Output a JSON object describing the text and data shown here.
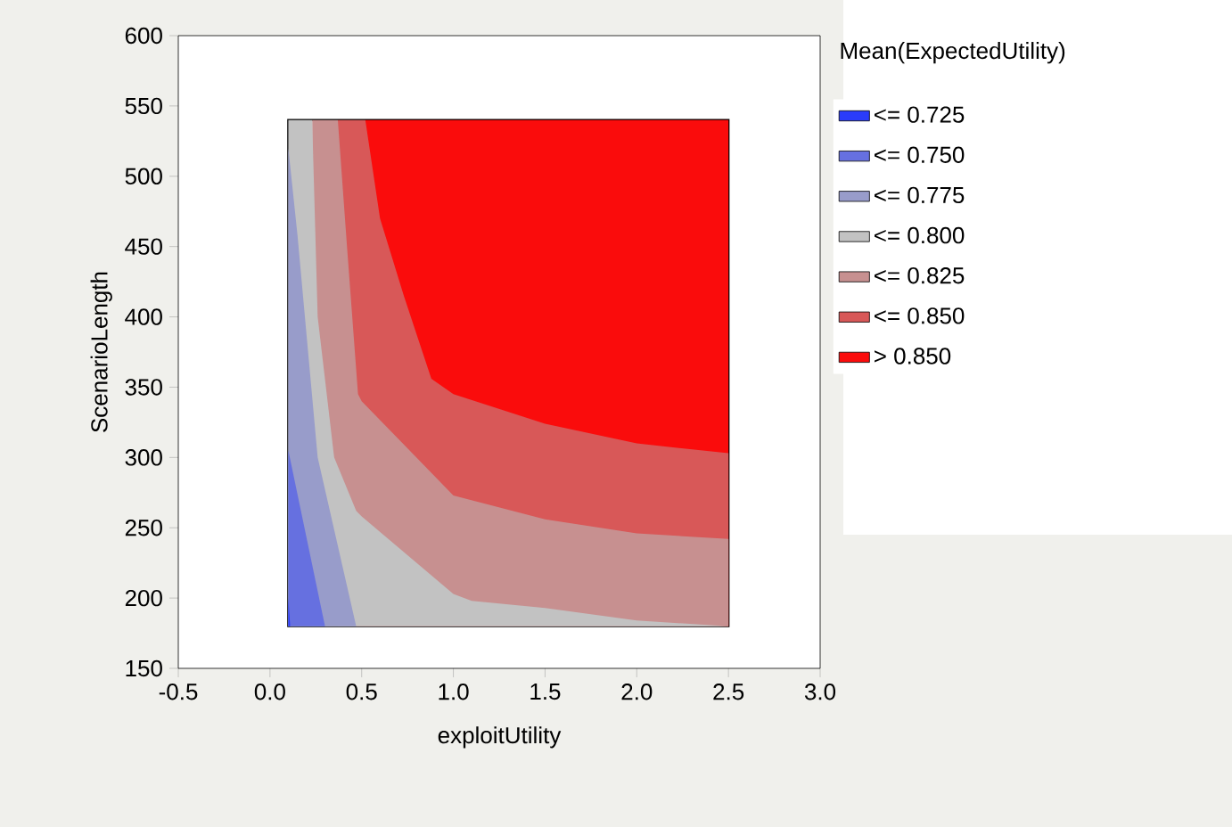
{
  "chart_data": {
    "type": "area",
    "xlabel": "exploitUtility",
    "ylabel": "ScenarioLength",
    "legend_title": "Mean(ExpectedUtility)",
    "legend": "right",
    "xlim": [
      -0.5,
      3.0
    ],
    "ylim": [
      150,
      600
    ],
    "xticks": [
      {
        "value": -0.5,
        "label": "-0.5"
      },
      {
        "value": 0,
        "label": "0.0"
      },
      {
        "value": 0.5,
        "label": "0.5"
      },
      {
        "value": 1,
        "label": "1.0"
      },
      {
        "value": 1.5,
        "label": "1.5"
      },
      {
        "value": 2,
        "label": "2.0"
      },
      {
        "value": 2.5,
        "label": "2.5"
      },
      {
        "value": 3,
        "label": "3.0"
      }
    ],
    "yticks": [
      150,
      200,
      250,
      300,
      350,
      400,
      450,
      500,
      550,
      600
    ],
    "series": [
      {
        "name": "<= 0.725",
        "color": "#2a3cfa",
        "x": [
          0.1,
          0.11
        ],
        "values": [
          200,
          180
        ]
      },
      {
        "name": "<= 0.750",
        "color": "#6670e0",
        "x": [
          0.1,
          0.3
        ],
        "values": [
          305,
          180
        ]
      },
      {
        "name": "<= 0.775",
        "color": "#989cca",
        "x": [
          0.1,
          0.15,
          0.26,
          0.47
        ],
        "values": [
          520,
          458,
          300,
          180
        ]
      },
      {
        "name": "<= 0.800",
        "color": "#c2c2c2",
        "x": [
          0.1,
          0.23,
          0.26,
          0.35,
          0.47,
          0.5,
          1.0,
          1.1,
          1.5,
          2.0,
          2.5
        ],
        "values": [
          540,
          540,
          400,
          300,
          262,
          258,
          203,
          198,
          193,
          184,
          180
        ]
      },
      {
        "name": "<= 0.825",
        "color": "#c79090",
        "x": [
          0.23,
          0.37,
          0.42,
          0.48,
          0.5,
          1.0,
          1.5,
          2.0,
          2.5
        ],
        "values": [
          540,
          540,
          450,
          345,
          340,
          273,
          256,
          246,
          242
        ]
      },
      {
        "name": "<= 0.850",
        "color": "#d85858",
        "x": [
          0.37,
          0.52,
          0.6,
          0.73,
          0.88,
          1.0,
          1.5,
          2.0,
          2.5
        ],
        "values": [
          540,
          540,
          470,
          415,
          356,
          345,
          324,
          310,
          303
        ]
      },
      {
        "name": "> 0.850",
        "color": "#fa0c0c",
        "x": [
          0.52,
          2.5
        ],
        "values": [
          540,
          540
        ]
      }
    ]
  }
}
